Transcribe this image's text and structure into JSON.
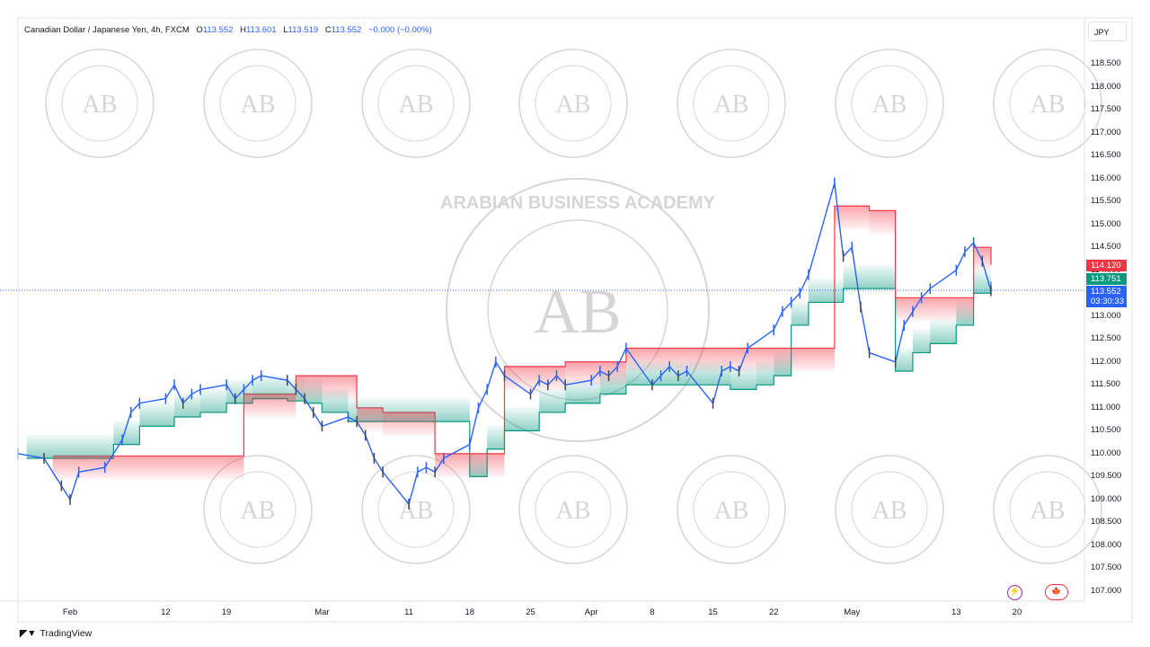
{
  "header": {
    "symbol": "Canadian Dollar / Japanese Yen, 4h, FXCM",
    "o_label": "O",
    "o_value": "113.552",
    "h_label": "H",
    "h_value": "113.601",
    "l_label": "L",
    "l_value": "113.519",
    "c_label": "C",
    "c_value": "113.552",
    "change": "−0.000 (−0.00%)"
  },
  "currency_button": "JPY",
  "price_labels": {
    "upper": "114.120",
    "lower": "113.751",
    "last": "113.552",
    "countdown": "03:30:33"
  },
  "brand": "TradingView",
  "watermark": {
    "text": "ARABIAN BUSINESS ACADEMY",
    "monogram": "AB"
  },
  "colors": {
    "bull": "#2962ff",
    "bear": "#434651",
    "stop_up": "#089981",
    "stop_down": "#f23645",
    "last_price": "#2962ff",
    "watermark": "#d6d6d6"
  },
  "chart_data": {
    "type": "line",
    "title": "Canadian Dollar / Japanese Yen, 4h, FXCM",
    "xlabel": "",
    "ylabel": "",
    "ylim": [
      106.75,
      118.9
    ],
    "y_ticks": [
      "107.000",
      "107.500",
      "108.000",
      "108.500",
      "109.000",
      "109.500",
      "110.000",
      "110.500",
      "111.000",
      "111.500",
      "112.000",
      "112.500",
      "113.000",
      "113.500",
      "114.000",
      "114.500",
      "115.000",
      "115.500",
      "116.000",
      "116.500",
      "117.000",
      "117.500",
      "118.000",
      "118.500"
    ],
    "x_ticks": [
      {
        "label": "Feb",
        "date": "2024-02-01"
      },
      {
        "label": "12",
        "date": "2024-02-12"
      },
      {
        "label": "19",
        "date": "2024-02-19"
      },
      {
        "label": "Mar",
        "date": "2024-03-01"
      },
      {
        "label": "11",
        "date": "2024-03-11"
      },
      {
        "label": "18",
        "date": "2024-03-18"
      },
      {
        "label": "25",
        "date": "2024-03-25"
      },
      {
        "label": "Apr",
        "date": "2024-04-01"
      },
      {
        "label": "8",
        "date": "2024-04-08"
      },
      {
        "label": "15",
        "date": "2024-04-15"
      },
      {
        "label": "22",
        "date": "2024-04-22"
      },
      {
        "label": "May",
        "date": "2024-05-01"
      },
      {
        "label": "13",
        "date": "2024-05-13"
      },
      {
        "label": "20",
        "date": "2024-05-20"
      }
    ],
    "x_range": [
      "2024-01-26",
      "2024-05-26"
    ],
    "series": [
      {
        "values": [
          [
            "2024-01-26",
            110.0
          ],
          [
            "2024-01-29",
            109.9
          ],
          [
            "2024-01-31",
            109.3
          ],
          [
            "2024-02-01",
            109.0
          ],
          [
            "2024-02-02",
            109.6
          ],
          [
            "2024-02-05",
            109.7
          ],
          [
            "2024-02-07",
            110.3
          ],
          [
            "2024-02-08",
            110.9
          ],
          [
            "2024-02-09",
            111.1
          ],
          [
            "2024-02-12",
            111.2
          ],
          [
            "2024-02-13",
            111.5
          ],
          [
            "2024-02-14",
            111.1
          ],
          [
            "2024-02-15",
            111.3
          ],
          [
            "2024-02-16",
            111.4
          ],
          [
            "2024-02-19",
            111.5
          ],
          [
            "2024-02-20",
            111.2
          ],
          [
            "2024-02-21",
            111.4
          ],
          [
            "2024-02-22",
            111.6
          ],
          [
            "2024-02-23",
            111.7
          ],
          [
            "2024-02-26",
            111.6
          ],
          [
            "2024-02-27",
            111.4
          ],
          [
            "2024-02-28",
            111.2
          ],
          [
            "2024-02-29",
            110.9
          ],
          [
            "2024-03-01",
            110.6
          ],
          [
            "2024-03-04",
            110.8
          ],
          [
            "2024-03-05",
            110.7
          ],
          [
            "2024-03-06",
            110.4
          ],
          [
            "2024-03-07",
            109.9
          ],
          [
            "2024-03-08",
            109.6
          ],
          [
            "2024-03-11",
            108.9
          ],
          [
            "2024-03-12",
            109.6
          ],
          [
            "2024-03-13",
            109.7
          ],
          [
            "2024-03-14",
            109.6
          ],
          [
            "2024-03-15",
            109.9
          ],
          [
            "2024-03-18",
            110.2
          ],
          [
            "2024-03-19",
            111.0
          ],
          [
            "2024-03-20",
            111.4
          ],
          [
            "2024-03-21",
            112.0
          ],
          [
            "2024-03-22",
            111.7
          ],
          [
            "2024-03-25",
            111.3
          ],
          [
            "2024-03-26",
            111.6
          ],
          [
            "2024-03-27",
            111.5
          ],
          [
            "2024-03-28",
            111.7
          ],
          [
            "2024-03-29",
            111.5
          ],
          [
            "2024-04-01",
            111.6
          ],
          [
            "2024-04-02",
            111.8
          ],
          [
            "2024-04-03",
            111.7
          ],
          [
            "2024-04-04",
            111.9
          ],
          [
            "2024-04-05",
            112.3
          ],
          [
            "2024-04-08",
            111.5
          ],
          [
            "2024-04-09",
            111.7
          ],
          [
            "2024-04-10",
            111.9
          ],
          [
            "2024-04-11",
            111.7
          ],
          [
            "2024-04-12",
            111.8
          ],
          [
            "2024-04-15",
            111.1
          ],
          [
            "2024-04-16",
            111.8
          ],
          [
            "2024-04-17",
            111.9
          ],
          [
            "2024-04-18",
            111.8
          ],
          [
            "2024-04-19",
            112.3
          ],
          [
            "2024-04-22",
            112.7
          ],
          [
            "2024-04-23",
            113.1
          ],
          [
            "2024-04-24",
            113.3
          ],
          [
            "2024-04-25",
            113.5
          ],
          [
            "2024-04-26",
            113.9
          ],
          [
            "2024-04-29",
            115.9
          ],
          [
            "2024-04-30",
            114.3
          ],
          [
            "2024-05-01",
            114.5
          ],
          [
            "2024-05-02",
            113.2
          ],
          [
            "2024-05-03",
            112.2
          ],
          [
            "2024-05-06",
            112.0
          ],
          [
            "2024-05-07",
            112.8
          ],
          [
            "2024-05-08",
            113.1
          ],
          [
            "2024-05-09",
            113.4
          ],
          [
            "2024-05-10",
            113.6
          ],
          [
            "2024-05-13",
            114.0
          ],
          [
            "2024-05-14",
            114.4
          ],
          [
            "2024-05-15",
            114.6
          ],
          [
            "2024-05-16",
            114.2
          ],
          [
            "2024-05-17",
            113.552
          ]
        ]
      },
      {
        "values": [
          [
            "2024-01-27",
            109.9
          ],
          [
            "2024-02-02",
            109.9
          ],
          [
            "2024-02-06",
            110.2
          ],
          [
            "2024-02-09",
            110.6
          ],
          [
            "2024-02-13",
            110.8
          ],
          [
            "2024-02-16",
            110.9
          ],
          [
            "2024-02-19",
            111.1
          ],
          [
            "2024-02-22",
            111.2
          ],
          [
            "2024-02-26",
            111.15
          ],
          [
            "2024-02-28",
            111.1
          ],
          [
            "2024-03-01",
            110.9
          ],
          [
            "2024-03-04",
            110.7
          ],
          [
            "2024-03-06",
            110.7
          ],
          [
            "2024-03-18",
            109.5
          ],
          [
            "2024-03-20",
            110.1
          ],
          [
            "2024-03-22",
            110.5
          ],
          [
            "2024-03-26",
            110.9
          ],
          [
            "2024-03-29",
            111.1
          ],
          [
            "2024-04-02",
            111.3
          ],
          [
            "2024-04-05",
            111.5
          ],
          [
            "2024-04-10",
            111.5
          ],
          [
            "2024-04-17",
            111.4
          ],
          [
            "2024-04-20",
            111.5
          ],
          [
            "2024-04-22",
            111.7
          ],
          [
            "2024-04-24",
            112.8
          ],
          [
            "2024-04-26",
            113.3
          ],
          [
            "2024-04-30",
            113.6
          ],
          [
            "2024-05-02",
            113.6
          ],
          [
            "2024-05-06",
            111.8
          ],
          [
            "2024-05-08",
            112.2
          ],
          [
            "2024-05-10",
            112.4
          ],
          [
            "2024-05-13",
            112.8
          ],
          [
            "2024-05-15",
            113.5
          ],
          [
            "2024-05-17",
            113.751
          ]
        ]
      },
      {
        "values": [
          [
            "2024-01-30",
            109.95
          ],
          [
            "2024-02-02",
            109.95
          ],
          [
            "2024-02-21",
            111.3
          ],
          [
            "2024-02-27",
            111.7
          ],
          [
            "2024-03-05",
            111.0
          ],
          [
            "2024-03-08",
            110.9
          ],
          [
            "2024-03-14",
            110.0
          ],
          [
            "2024-03-22",
            111.9
          ],
          [
            "2024-03-29",
            112.0
          ],
          [
            "2024-04-05",
            112.3
          ],
          [
            "2024-04-12",
            112.3
          ],
          [
            "2024-04-29",
            115.4
          ],
          [
            "2024-05-03",
            115.3
          ],
          [
            "2024-05-06",
            113.4
          ],
          [
            "2024-05-10",
            113.4
          ],
          [
            "2024-05-15",
            114.5
          ],
          [
            "2024-05-17",
            114.12
          ]
        ]
      }
    ],
    "grid": false,
    "legend": "none"
  }
}
